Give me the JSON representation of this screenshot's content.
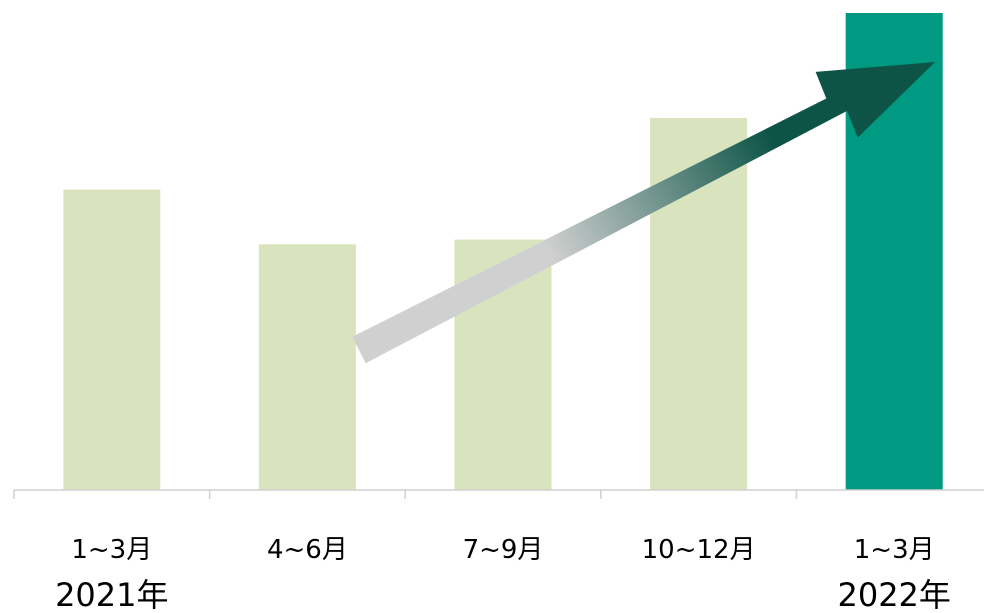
{
  "chart_data": {
    "type": "bar",
    "categories": [
      "1~3月",
      "4~6月",
      "7~9月",
      "10~12月",
      "1~3月"
    ],
    "year_labels": [
      "2021年",
      "",
      "",
      "",
      "2022年"
    ],
    "values": [
      63,
      51.5,
      52.5,
      78,
      100
    ],
    "highlight_index": 4,
    "ylim": [
      0,
      100
    ],
    "grid": false,
    "legend": "none",
    "annotation": "upward trend arrow from 4~6月 to 1~3月 2022年, fading gray to dark green",
    "title": "",
    "xlabel": "",
    "ylabel": ""
  },
  "colors": {
    "bar": "#d9e4bf",
    "highlight_bar": "#009981",
    "axis": "#d0d0d0",
    "arrow_start": "#d0d0d0",
    "arrow_end": "#0d5447"
  }
}
